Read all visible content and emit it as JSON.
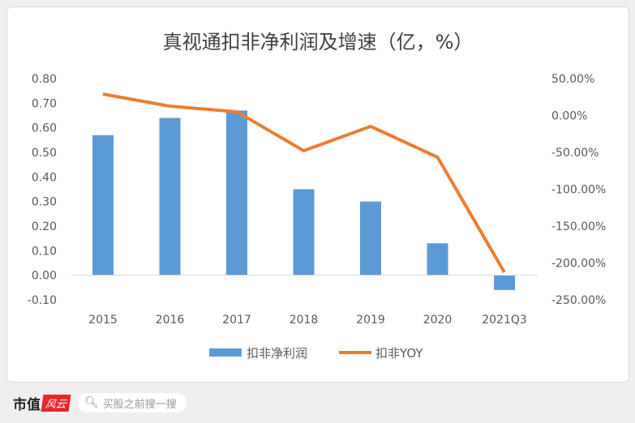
{
  "chart_data": {
    "type": "bar+line",
    "title": "真视通扣非净利润及增速（亿，%）",
    "categories": [
      "2015",
      "2016",
      "2017",
      "2018",
      "2019",
      "2020",
      "2021Q3"
    ],
    "series": [
      {
        "name": "扣非净利润",
        "type": "bar",
        "axis": "left",
        "color": "#5b9bd5",
        "values": [
          0.57,
          0.64,
          0.67,
          0.35,
          0.3,
          0.13,
          -0.06
        ]
      },
      {
        "name": "扣非YOY",
        "type": "line",
        "axis": "right",
        "color": "#ed7d31",
        "values": [
          29.0,
          12.6,
          5.0,
          -47.8,
          -14.8,
          -56.6,
          -212.6
        ]
      }
    ],
    "left_axis": {
      "ylim": [
        -0.1,
        0.8
      ],
      "ticks": [
        "0.80",
        "0.70",
        "0.60",
        "0.50",
        "0.40",
        "0.30",
        "0.20",
        "0.10",
        "0.00",
        "-0.10"
      ]
    },
    "right_axis": {
      "ylim": [
        -250,
        50
      ],
      "ticks": [
        "50.00%",
        "0.00%",
        "-50.00%",
        "-100.00%",
        "-150.00%",
        "-200.00%",
        "-250.00%"
      ]
    },
    "grid": false,
    "legend": "bottom"
  },
  "footer": {
    "brand": "市值",
    "brand_tag": "风云",
    "search_placeholder": "买股之前搜一搜"
  }
}
